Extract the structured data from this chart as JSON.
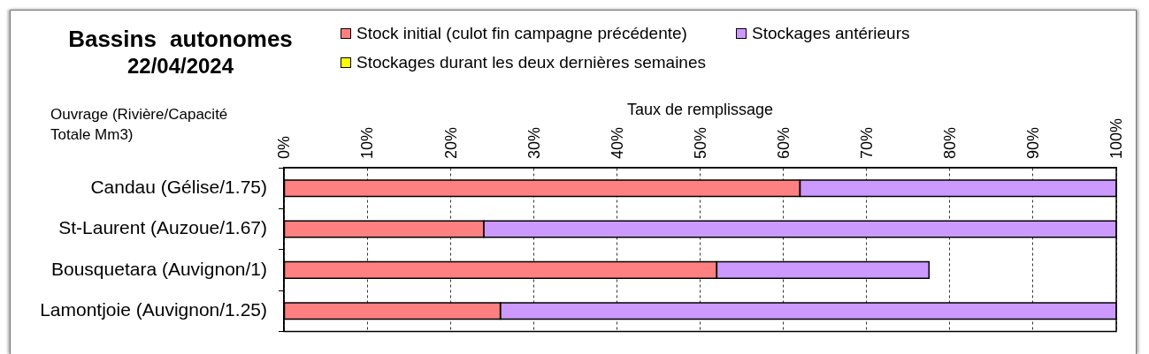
{
  "chart_data": {
    "type": "bar",
    "orientation": "horizontal",
    "stacked": true,
    "title": "Bassins autonomes",
    "subtitle": "22/04/2024",
    "xlabel": "Taux de remplissage",
    "ylabel": "Ouvrage (Rivière/Capacité Totale Mm3)",
    "categories": [
      "Candau (Gélise/1.75)",
      "St-Laurent (Auzoue/1.67)",
      "Bousquetara (Auvignon/1)",
      "Lamontjoie (Auvignon/1.25)"
    ],
    "series": [
      {
        "name": "Stock initial (culot fin campagne précédente)",
        "color": "#ff8080",
        "values": [
          62,
          24,
          52,
          26
        ]
      },
      {
        "name": "Stockages antérieurs",
        "color": "#cc99ff",
        "values": [
          38,
          76,
          25.5,
          74
        ]
      },
      {
        "name": "Stockages durant les deux dernières semaines",
        "color": "#ffff00",
        "values": [
          0,
          0,
          0,
          0
        ]
      }
    ],
    "xlim": [
      0,
      100
    ],
    "xticks": [
      {
        "value": 0,
        "label": "0%"
      },
      {
        "value": 10,
        "label": "10%"
      },
      {
        "value": 20,
        "label": "20%"
      },
      {
        "value": 30,
        "label": "30%"
      },
      {
        "value": 40,
        "label": "40%"
      },
      {
        "value": 50,
        "label": "50%"
      },
      {
        "value": 60,
        "label": "60%"
      },
      {
        "value": 70,
        "label": "70%"
      },
      {
        "value": 80,
        "label": "80%"
      },
      {
        "value": 90,
        "label": "90%"
      },
      {
        "value": 100,
        "label": "100%"
      }
    ],
    "grid": "x",
    "legend": "top"
  }
}
